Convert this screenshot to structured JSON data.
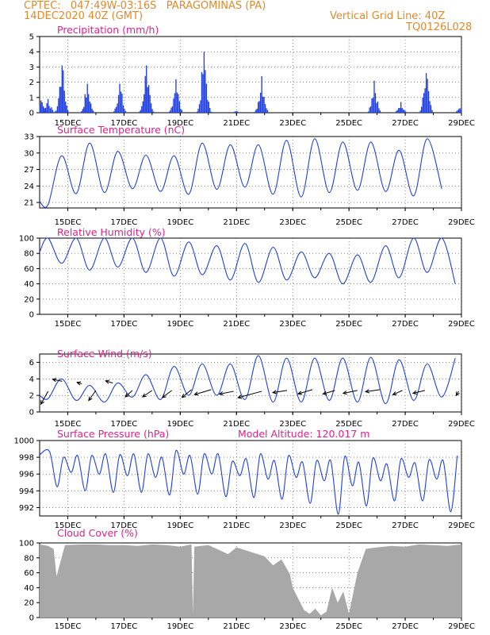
{
  "header": {
    "line1": "CPTEC:   047:49W-03:16S   PARAGOMINAS (PA)",
    "line2": "14DEC2020 40Z (GMT)",
    "vgrid": "Vertical Grid Line: 40Z",
    "code": "TQ0126L028"
  },
  "colors": {
    "header": "#e08a2c",
    "title": "#e0218a",
    "line": "#1f3fe0",
    "bar": "#1f3fe0",
    "cloud": "#a8a8a8",
    "wind": "#000000"
  },
  "chart_data": [
    {
      "type": "bar",
      "title": "Precipitation (mm/h)",
      "x_range": [
        14.0,
        29.0
      ],
      "ylim": [
        0,
        5
      ],
      "yticks": [
        "0",
        "1",
        "2",
        "3",
        "4",
        "5"
      ],
      "xticks": [
        "15DEC",
        "17DEC",
        "19DEC",
        "21DEC",
        "23DEC",
        "25DEC",
        "27DEC",
        "29DEC"
      ],
      "grid": true,
      "events": [
        {
          "day": 14.05,
          "peak": 0.8
        },
        {
          "day": 14.3,
          "peak": 0.9
        },
        {
          "day": 14.8,
          "peak": 3.1
        },
        {
          "day": 15.7,
          "peak": 1.9
        },
        {
          "day": 16.85,
          "peak": 1.9
        },
        {
          "day": 17.8,
          "peak": 3.1
        },
        {
          "day": 18.85,
          "peak": 2.2
        },
        {
          "day": 19.85,
          "peak": 4.0
        },
        {
          "day": 21.0,
          "peak": 0.1
        },
        {
          "day": 21.9,
          "peak": 2.4
        },
        {
          "day": 25.9,
          "peak": 2.1
        },
        {
          "day": 26.85,
          "peak": 0.7
        },
        {
          "day": 27.75,
          "peak": 2.6
        },
        {
          "day": 28.95,
          "peak": 0.3
        }
      ]
    },
    {
      "type": "line",
      "title": "Surface Temperature (nC)",
      "x_range": [
        14.0,
        29.0
      ],
      "ylim": [
        20,
        33
      ],
      "yticks": [
        "21",
        "24",
        "27",
        "30",
        "33"
      ],
      "xticks": [
        "15DEC",
        "17DEC",
        "19DEC",
        "21DEC",
        "23DEC",
        "25DEC",
        "27DEC",
        "29DEC"
      ],
      "grid": true,
      "max": [
        29.5,
        31.8,
        30.3,
        29.6,
        29.5,
        31.8,
        31.5,
        31.5,
        32.3,
        32.6,
        32.0,
        32.0,
        30.5,
        32.6
      ],
      "min": [
        20.6,
        22.6,
        22.8,
        23.5,
        23.0,
        22.5,
        23.4,
        23.8,
        22.5,
        22.0,
        22.8,
        23.2,
        23.0,
        22.2,
        23.5
      ],
      "min_first": 20.6
    },
    {
      "type": "line",
      "title": "Relative Humidity (%)",
      "x_range": [
        14.0,
        29.0
      ],
      "ylim": [
        0,
        100
      ],
      "yticks": [
        "0",
        "20",
        "40",
        "60",
        "80",
        "100"
      ],
      "xticks": [
        "15DEC",
        "17DEC",
        "19DEC",
        "21DEC",
        "23DEC",
        "25DEC",
        "27DEC",
        "29DEC"
      ],
      "grid": true,
      "max": [
        100,
        100,
        100,
        100,
        100,
        95,
        90,
        93,
        88,
        82,
        80,
        78,
        90,
        100,
        100
      ],
      "min": [
        67,
        58,
        62,
        55,
        50,
        52,
        45,
        42,
        45,
        48,
        40,
        42,
        48,
        55,
        40
      ]
    },
    {
      "type": "line",
      "title": "Surface Wind (m/s)",
      "x_range": [
        14.0,
        29.0
      ],
      "ylim": [
        0,
        7
      ],
      "yticks": [
        "0",
        "2",
        "4",
        "6"
      ],
      "xticks": [
        "15DEC",
        "17DEC",
        "19DEC",
        "21DEC",
        "23DEC",
        "25DEC",
        "27DEC",
        "29DEC"
      ],
      "grid": true,
      "max": [
        4.0,
        3.2,
        3.5,
        4.5,
        5.5,
        5.8,
        5.8,
        6.8,
        6.5,
        6.5,
        6.5,
        6.6,
        6.3,
        5.8,
        6.5
      ],
      "min": [
        1.6,
        1.4,
        1.2,
        1.8,
        1.5,
        2.0,
        2.0,
        1.5,
        1.2,
        1.2,
        1.4,
        1.2,
        1.0,
        1.4,
        1.8
      ],
      "arrows": [
        {
          "day": 14.3,
          "y": 2.5,
          "dx": -0.3,
          "dy": -1.8
        },
        {
          "day": 14.8,
          "y": 3.7,
          "dx": -0.4,
          "dy": 0.3
        },
        {
          "day": 15.5,
          "y": 3.4,
          "dx": -0.2,
          "dy": 0.2
        },
        {
          "day": 16.0,
          "y": 2.6,
          "dx": -0.3,
          "dy": -1.4
        },
        {
          "day": 16.6,
          "y": 3.5,
          "dx": -0.3,
          "dy": 0.3
        },
        {
          "day": 17.3,
          "y": 2.6,
          "dx": -0.3,
          "dy": -0.9
        },
        {
          "day": 18.0,
          "y": 2.6,
          "dx": -0.4,
          "dy": -0.9
        },
        {
          "day": 18.7,
          "y": 2.6,
          "dx": -0.4,
          "dy": -1.0
        },
        {
          "day": 19.4,
          "y": 2.7,
          "dx": -0.4,
          "dy": -1.1
        },
        {
          "day": 20.1,
          "y": 2.7,
          "dx": -0.7,
          "dy": -0.7
        },
        {
          "day": 20.9,
          "y": 2.5,
          "dx": -0.6,
          "dy": -0.4
        },
        {
          "day": 21.9,
          "y": 2.5,
          "dx": -1.0,
          "dy": -0.9
        },
        {
          "day": 22.8,
          "y": 2.6,
          "dx": -0.6,
          "dy": -0.3
        },
        {
          "day": 23.7,
          "y": 2.7,
          "dx": -0.6,
          "dy": -0.6
        },
        {
          "day": 24.5,
          "y": 2.6,
          "dx": -0.5,
          "dy": -0.5
        },
        {
          "day": 25.3,
          "y": 2.6,
          "dx": -0.6,
          "dy": -0.4
        },
        {
          "day": 26.1,
          "y": 2.7,
          "dx": -0.6,
          "dy": -0.3
        },
        {
          "day": 26.9,
          "y": 2.6,
          "dx": -0.4,
          "dy": -0.6
        },
        {
          "day": 27.7,
          "y": 2.6,
          "dx": -0.5,
          "dy": -0.4
        },
        {
          "day": 28.9,
          "y": 2.5,
          "dx": -0.1,
          "dy": -0.6
        }
      ]
    },
    {
      "type": "line",
      "title": "Surface Pressure (hPa)",
      "subtitle": "Model Altitude: 120.017 m",
      "x_range": [
        14.0,
        29.0
      ],
      "ylim": [
        991,
        1000
      ],
      "yticks": [
        "992",
        "994",
        "996",
        "998",
        "1000"
      ],
      "xticks": [
        "15DEC",
        "17DEC",
        "19DEC",
        "21DEC",
        "23DEC",
        "25DEC",
        "27DEC",
        "29DEC"
      ],
      "grid": true,
      "start": 998.3,
      "semi_max": [
        998.7,
        998.0,
        998.2,
        998.2,
        998.4,
        998.3,
        998.4,
        998.4,
        998.0,
        998.8,
        998.2,
        998.4,
        998.4,
        997.5,
        997.8,
        998.4,
        997.6,
        998.2,
        997.4,
        997.6,
        997.6,
        998.1,
        997.4,
        997.9,
        997.2,
        997.8,
        997.3,
        997.7,
        997.6,
        998.2
      ],
      "semi_min": [
        994.5,
        996.2,
        994.0,
        996.0,
        993.8,
        995.8,
        993.8,
        995.6,
        993.5,
        996.0,
        993.6,
        996.0,
        993.3,
        995.8,
        993.2,
        995.4,
        993.0,
        995.6,
        992.5,
        995.2,
        991.2,
        994.6,
        992.2,
        995.2,
        992.8,
        995.6,
        992.8,
        995.4,
        991.5,
        995.8
      ]
    },
    {
      "type": "area",
      "title": "Cloud Cover (%)",
      "x_range": [
        14.0,
        29.0
      ],
      "ylim": [
        0,
        100
      ],
      "yticks": [
        "0",
        "20",
        "40",
        "60",
        "80",
        "100"
      ],
      "xticks": [
        "15DEC",
        "17DEC",
        "19DEC",
        "21DEC",
        "23DEC",
        "25DEC",
        "27DEC",
        "29DEC"
      ],
      "grid": true,
      "x": [
        14.0,
        14.3,
        14.5,
        14.6,
        14.9,
        15.5,
        16.0,
        16.5,
        17.0,
        17.5,
        18.0,
        18.5,
        19.0,
        19.4,
        19.45,
        19.5,
        20.0,
        20.3,
        20.7,
        21.0,
        21.5,
        22.0,
        22.3,
        22.6,
        22.9,
        23.0,
        23.2,
        23.4,
        23.6,
        23.8,
        24.0,
        24.2,
        24.4,
        24.5,
        24.6,
        24.8,
        25.0,
        25.3,
        25.6,
        26.0,
        26.5,
        27.0,
        27.5,
        28.0,
        28.5,
        29.0
      ],
      "values": [
        98,
        96,
        92,
        55,
        97,
        98,
        98,
        97,
        97,
        96,
        98,
        97,
        95,
        98,
        5,
        95,
        97,
        92,
        85,
        94,
        88,
        82,
        70,
        78,
        58,
        40,
        25,
        10,
        5,
        12,
        3,
        8,
        40,
        30,
        20,
        35,
        5,
        60,
        92,
        94,
        96,
        95,
        98,
        97,
        96,
        98
      ]
    }
  ]
}
